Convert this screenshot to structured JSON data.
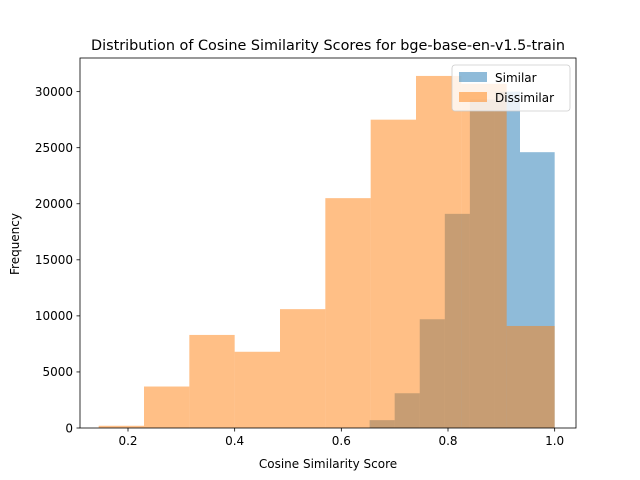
{
  "chart_data": {
    "type": "bar",
    "subtype": "histogram",
    "title": "Distribution of Cosine Similarity Scores for bge-base-en-v1.5-train",
    "xlabel": "Cosine Similarity Score",
    "ylabel": "Frequency",
    "xlim": [
      0.11,
      1.04
    ],
    "ylim": [
      0,
      33000
    ],
    "xticks": [
      0.2,
      0.4,
      0.6,
      0.8,
      1.0
    ],
    "xtick_labels": [
      "0.2",
      "0.4",
      "0.6",
      "0.8",
      "1.0"
    ],
    "yticks": [
      0,
      5000,
      10000,
      15000,
      20000,
      25000,
      30000
    ],
    "ytick_labels": [
      "0",
      "5000",
      "10000",
      "15000",
      "20000",
      "25000",
      "30000"
    ],
    "grid": false,
    "legend_position": "top-right",
    "series": [
      {
        "name": "Similar",
        "color": "#1f77b4",
        "alpha": 0.5,
        "bin_edges": [
          0.653,
          0.7,
          0.747,
          0.794,
          0.841,
          0.888,
          0.935,
          1.0
        ],
        "values": [
          700,
          3100,
          9700,
          19100,
          29300,
          30000,
          24600
        ]
      },
      {
        "name": "Dissimilar",
        "color": "#ff7f0e",
        "alpha": 0.5,
        "bin_edges": [
          0.145,
          0.23,
          0.315,
          0.4,
          0.485,
          0.57,
          0.655,
          0.74,
          0.825,
          0.91,
          1.0
        ],
        "values": [
          200,
          3700,
          8300,
          6800,
          10600,
          20500,
          27500,
          31400,
          30700,
          9100
        ]
      }
    ]
  }
}
